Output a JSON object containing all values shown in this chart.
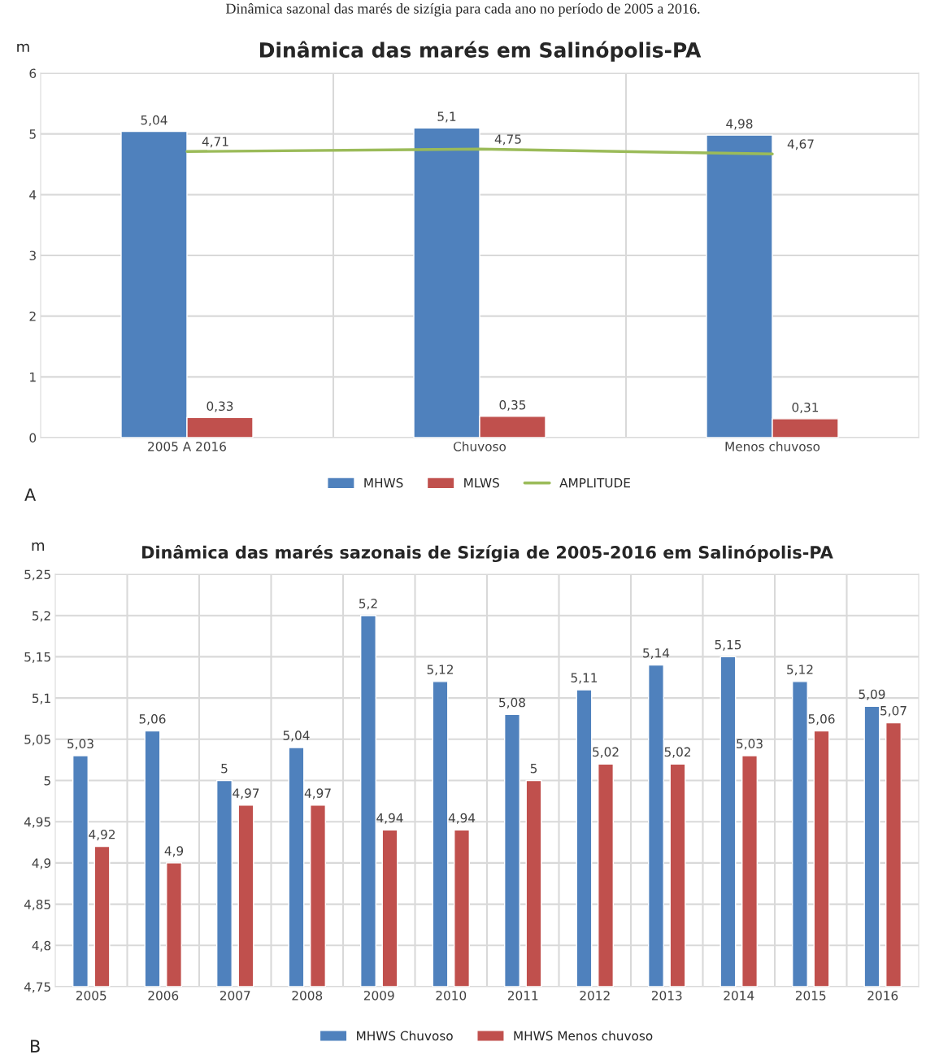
{
  "chart_data": [
    {
      "type": "bar",
      "title": "Dinâmica das marés em Salinópolis-PA",
      "ylabel": "m",
      "annotations": [
        "Dinâmica sazonal das marés de sizígia para cada ano no período de 2005 a 2016.",
        "A"
      ],
      "categories": [
        "2005 A 2016",
        "Chuvoso",
        "Menos chuvoso"
      ],
      "series": [
        {
          "name": "MHWS",
          "color": "#4f81bd",
          "values": [
            5.04,
            5.1,
            4.98
          ],
          "value_labels": [
            "5,04",
            "5,1",
            "4,98"
          ]
        },
        {
          "name": "MLWS",
          "color": "#c0504d",
          "values": [
            0.33,
            0.35,
            0.31
          ],
          "value_labels": [
            "0,33",
            "0,35",
            "0,31"
          ]
        },
        {
          "name": "AMPLITUDE",
          "type": "line",
          "color": "#9bbb59",
          "values": [
            4.71,
            4.75,
            4.67
          ],
          "value_labels": [
            "4,71",
            "4,75",
            "4,67"
          ]
        }
      ],
      "ylim": [
        0,
        6
      ],
      "yticks": [
        0,
        1,
        2,
        3,
        4,
        5,
        6
      ],
      "grid": true,
      "legend": "bottom",
      "line_style": "solid"
    },
    {
      "type": "bar",
      "title": "Dinâmica das marés sazonais de Sizígia de 2005-2016 em Salinópolis-PA",
      "ylabel": "m",
      "annotations": [
        "B"
      ],
      "categories": [
        "2005",
        "2006",
        "2007",
        "2008",
        "2009",
        "2010",
        "2011",
        "2012",
        "2013",
        "2014",
        "2015",
        "2016"
      ],
      "series": [
        {
          "name": "MHWS Chuvoso",
          "color": "#4f81bd",
          "values": [
            5.03,
            5.06,
            5.0,
            5.04,
            5.2,
            5.12,
            5.08,
            5.11,
            5.14,
            5.15,
            5.12,
            5.09
          ],
          "value_labels": [
            "5,03",
            "5,06",
            "5",
            "5,04",
            "5,2",
            "5,12",
            "5,08",
            "5,11",
            "5,14",
            "5,15",
            "5,12",
            "5,09"
          ]
        },
        {
          "name": "MHWS Menos chuvoso",
          "color": "#c0504d",
          "values": [
            4.92,
            4.9,
            4.97,
            4.97,
            4.94,
            4.94,
            5.0,
            5.02,
            5.02,
            5.03,
            5.06,
            5.07
          ],
          "value_labels": [
            "4,92",
            "4,9",
            "4,97",
            "4,97",
            "4,94",
            "4,94",
            "5",
            "5,02",
            "5,02",
            "5,03",
            "5,06",
            "5,07"
          ]
        }
      ],
      "ylim": [
        4.75,
        5.25
      ],
      "yticks": [
        {
          "value": 4.75,
          "label": "4,75"
        },
        {
          "value": 4.8,
          "label": "4,8"
        },
        {
          "value": 4.85,
          "label": "4,85"
        },
        {
          "value": 4.9,
          "label": "4,9"
        },
        {
          "value": 4.95,
          "label": "4,95"
        },
        {
          "value": 5.0,
          "label": "5"
        },
        {
          "value": 5.05,
          "label": "5,05"
        },
        {
          "value": 5.1,
          "label": "5,1"
        },
        {
          "value": 5.15,
          "label": "5,15"
        },
        {
          "value": 5.2,
          "label": "5,2"
        },
        {
          "value": 5.25,
          "label": "5,25"
        }
      ],
      "grid": true,
      "legend": "bottom"
    }
  ]
}
